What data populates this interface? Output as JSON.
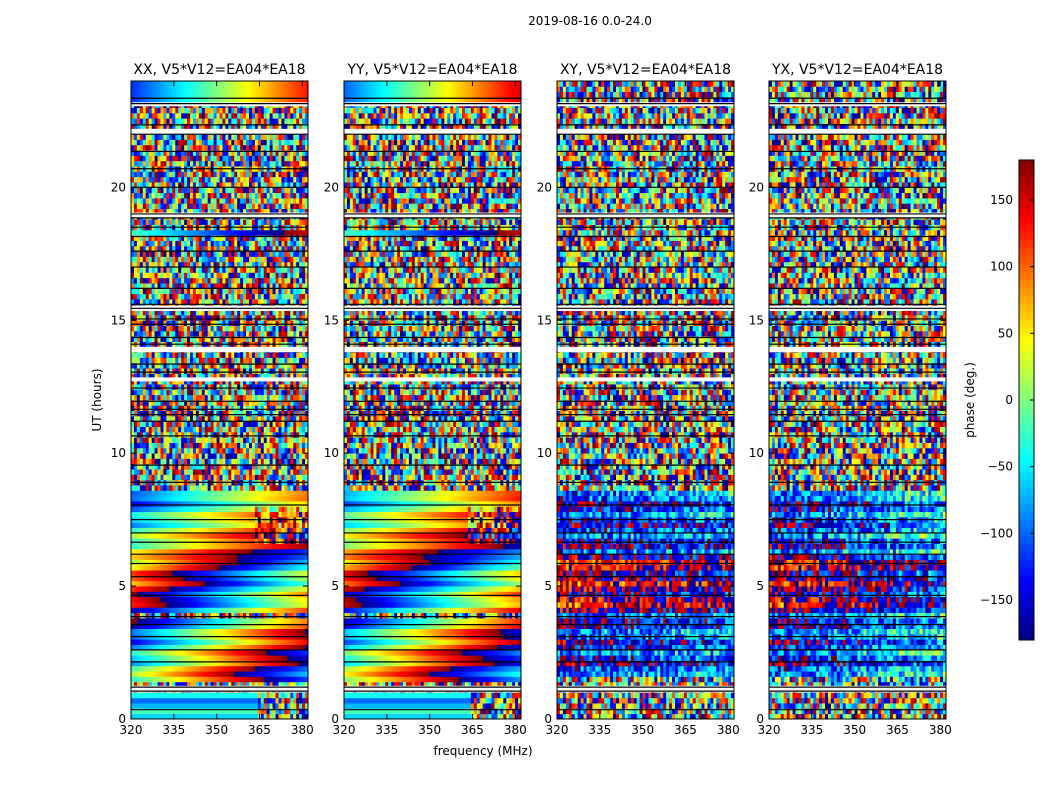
{
  "figure": {
    "title": "2019-08-16 0.0-24.0"
  },
  "chart_data": {
    "type": "heatmap",
    "title": "2019-08-16 0.0-24.0",
    "xlabel": "frequency (MHz)",
    "ylabel": "UT (hours)",
    "xlim": [
      320,
      382
    ],
    "ylim": [
      0,
      24
    ],
    "xticks": [
      320,
      335,
      350,
      365,
      380
    ],
    "yticks": [
      0,
      5,
      10,
      15,
      20
    ],
    "colormap": "jet",
    "colorbar": {
      "label": "phase (deg.)",
      "range": [
        -180,
        180
      ],
      "ticks": [
        -150,
        -100,
        -50,
        0,
        50,
        100,
        150
      ]
    },
    "panels": [
      {
        "title": "XX, V5*V12=EA04*EA18",
        "coherent_phase": true
      },
      {
        "title": "YY, V5*V12=EA04*EA18",
        "coherent_phase": true
      },
      {
        "title": "XY, V5*V12=EA04*EA18",
        "coherent_phase": false
      },
      {
        "title": "YX, V5*V12=EA04*EA18",
        "coherent_phase": false
      }
    ],
    "flagged_hours": [
      0.35,
      1.05,
      1.2,
      2.15,
      2.6,
      3.1,
      3.55,
      3.85,
      4.65,
      5.35,
      5.85,
      6.2,
      6.65,
      7.0,
      7.5,
      8.05,
      8.9,
      9.55,
      10.65,
      11.2,
      11.45,
      11.65,
      11.95,
      12.45,
      13.05,
      13.35,
      14.1,
      14.35,
      14.85,
      15.05,
      15.45,
      15.6,
      16.2,
      17.0,
      17.6,
      18.15,
      18.5,
      18.85,
      19.0,
      20.0,
      20.7,
      21.35,
      22.0,
      22.35,
      23.15,
      23.35
    ],
    "blank_hours": [
      [
        1.0,
        1.25
      ],
      [
        15.35,
        15.55
      ],
      [
        13.8,
        14.0
      ],
      [
        18.85,
        19.05
      ],
      [
        22.0,
        22.2
      ],
      [
        23.05,
        23.2
      ],
      [
        12.7,
        12.85
      ]
    ]
  }
}
